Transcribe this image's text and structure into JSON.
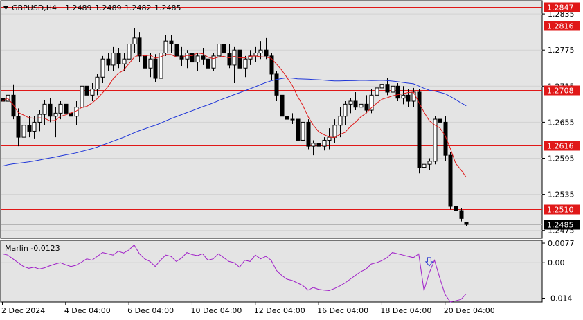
{
  "header": {
    "symbol_tf": "GBPUSD,H4",
    "open": "1.2489",
    "high": "1.2489",
    "low": "1.2482",
    "close": "1.2485"
  },
  "colors": {
    "background": "#e4e4e4",
    "frame": "#000000",
    "bull_body": "#ffffff",
    "bear_body": "#000000",
    "ma_fast": "#e01818",
    "ma_slow": "#1f36d8",
    "level": "#e01818",
    "marlin": "#a020c8",
    "arrow": "#2a3ad0",
    "label_bg": "#e01818",
    "current_bg": "#000000"
  },
  "icons": {
    "menu": "triangle-down-icon",
    "signal": "down-arrow-icon"
  },
  "chart_data": [
    {
      "type": "candlestick",
      "title": "GBPUSD,H4",
      "price_axis_labels": [
        "1.2835",
        "1.2775",
        "1.2715",
        "1.2655",
        "1.2595",
        "1.2535",
        "1.2475"
      ],
      "ylim": [
        1.2462,
        1.2857
      ],
      "time_axis_labels": [
        "2 Dec 2024",
        "4 Dec 04:00",
        "6 Dec 04:00",
        "10 Dec 04:00",
        "12 Dec 04:00",
        "16 Dec 04:00",
        "18 Dec 04:00",
        "20 Dec 04:00"
      ],
      "levels": [
        {
          "value": 1.2847,
          "label": "1.2847"
        },
        {
          "value": 1.2816,
          "label": "1.2816"
        },
        {
          "value": 1.2708,
          "label": "1.2708"
        },
        {
          "value": 1.2616,
          "label": "1.2616"
        },
        {
          "value": 1.251,
          "label": "1.2510"
        }
      ],
      "current_price": {
        "value": 1.2485,
        "label": "1.2485"
      },
      "candles": [
        [
          1.2695,
          1.271,
          1.268,
          1.269
        ],
        [
          1.269,
          1.2715,
          1.268,
          1.27
        ],
        [
          1.27,
          1.2718,
          1.266,
          1.2665
        ],
        [
          1.2665,
          1.2678,
          1.2615,
          1.263
        ],
        [
          1.263,
          1.2658,
          1.262,
          1.265
        ],
        [
          1.265,
          1.2665,
          1.263,
          1.264
        ],
        [
          1.264,
          1.2665,
          1.2628,
          1.2655
        ],
        [
          1.2655,
          1.2675,
          1.264,
          1.2668
        ],
        [
          1.2668,
          1.2692,
          1.265,
          1.2685
        ],
        [
          1.2685,
          1.2695,
          1.2655,
          1.2665
        ],
        [
          1.2665,
          1.268,
          1.263,
          1.267
        ],
        [
          1.267,
          1.269,
          1.266,
          1.2685
        ],
        [
          1.2685,
          1.27,
          1.266,
          1.267
        ],
        [
          1.267,
          1.269,
          1.263,
          1.2665
        ],
        [
          1.2665,
          1.269,
          1.265,
          1.268
        ],
        [
          1.268,
          1.272,
          1.2675,
          1.2715
        ],
        [
          1.2715,
          1.2725,
          1.269,
          1.27
        ],
        [
          1.27,
          1.272,
          1.269,
          1.271
        ],
        [
          1.271,
          1.2735,
          1.27,
          1.273
        ],
        [
          1.273,
          1.2765,
          1.272,
          1.276
        ],
        [
          1.276,
          1.277,
          1.274,
          1.275
        ],
        [
          1.275,
          1.278,
          1.274,
          1.277
        ],
        [
          1.277,
          1.2778,
          1.2745,
          1.2752
        ],
        [
          1.2752,
          1.277,
          1.274,
          1.276
        ],
        [
          1.276,
          1.279,
          1.275,
          1.2785
        ],
        [
          1.2785,
          1.2812,
          1.277,
          1.2795
        ],
        [
          1.2795,
          1.2805,
          1.2755,
          1.2765
        ],
        [
          1.2765,
          1.278,
          1.2735,
          1.2745
        ],
        [
          1.2745,
          1.277,
          1.273,
          1.276
        ],
        [
          1.276,
          1.2768,
          1.2722,
          1.2728
        ],
        [
          1.2728,
          1.2775,
          1.272,
          1.277
        ],
        [
          1.277,
          1.28,
          1.2765,
          1.279
        ],
        [
          1.279,
          1.28,
          1.277,
          1.2785
        ],
        [
          1.2785,
          1.279,
          1.2755,
          1.2765
        ],
        [
          1.2765,
          1.278,
          1.2748,
          1.276
        ],
        [
          1.276,
          1.2775,
          1.2745,
          1.277
        ],
        [
          1.277,
          1.2775,
          1.2748,
          1.2755
        ],
        [
          1.2755,
          1.277,
          1.274,
          1.2765
        ],
        [
          1.2765,
          1.2778,
          1.275,
          1.276
        ],
        [
          1.276,
          1.2772,
          1.2735,
          1.2745
        ],
        [
          1.2745,
          1.277,
          1.274,
          1.2765
        ],
        [
          1.2765,
          1.279,
          1.276,
          1.2785
        ],
        [
          1.2785,
          1.2795,
          1.276,
          1.277
        ],
        [
          1.277,
          1.2785,
          1.2745,
          1.275
        ],
        [
          1.275,
          1.278,
          1.272,
          1.2775
        ],
        [
          1.2775,
          1.2785,
          1.274,
          1.2745
        ],
        [
          1.2745,
          1.2765,
          1.273,
          1.276
        ],
        [
          1.276,
          1.2775,
          1.275,
          1.2765
        ],
        [
          1.2765,
          1.278,
          1.2755,
          1.277
        ],
        [
          1.277,
          1.279,
          1.276,
          1.2775
        ],
        [
          1.2775,
          1.2795,
          1.276,
          1.2765
        ],
        [
          1.2765,
          1.277,
          1.2725,
          1.2735
        ],
        [
          1.2735,
          1.274,
          1.269,
          1.27
        ],
        [
          1.27,
          1.271,
          1.2655,
          1.2665
        ],
        [
          1.2665,
          1.268,
          1.2655,
          1.266
        ],
        [
          1.266,
          1.267,
          1.2652,
          1.266
        ],
        [
          1.266,
          1.2662,
          1.2615,
          1.2625
        ],
        [
          1.2625,
          1.266,
          1.262,
          1.2655
        ],
        [
          1.2655,
          1.266,
          1.261,
          1.2615
        ],
        [
          1.2615,
          1.2625,
          1.26,
          1.262
        ],
        [
          1.262,
          1.2628,
          1.2598,
          1.2615
        ],
        [
          1.2615,
          1.263,
          1.2608,
          1.2625
        ],
        [
          1.2625,
          1.2645,
          1.261,
          1.263
        ],
        [
          1.263,
          1.266,
          1.262,
          1.265
        ],
        [
          1.265,
          1.268,
          1.263,
          1.2665
        ],
        [
          1.2665,
          1.269,
          1.265,
          1.2685
        ],
        [
          1.2685,
          1.2695,
          1.267,
          1.269
        ],
        [
          1.269,
          1.2705,
          1.2675,
          1.268
        ],
        [
          1.268,
          1.269,
          1.2665,
          1.2685
        ],
        [
          1.2685,
          1.27,
          1.267,
          1.2675
        ],
        [
          1.2675,
          1.271,
          1.267,
          1.27
        ],
        [
          1.27,
          1.272,
          1.269,
          1.2712
        ],
        [
          1.2712,
          1.2725,
          1.27,
          1.2718
        ],
        [
          1.2718,
          1.2728,
          1.27,
          1.2705
        ],
        [
          1.2705,
          1.2722,
          1.2695,
          1.2715
        ],
        [
          1.2715,
          1.272,
          1.269,
          1.2695
        ],
        [
          1.2695,
          1.2715,
          1.2685,
          1.27
        ],
        [
          1.27,
          1.271,
          1.268,
          1.269
        ],
        [
          1.269,
          1.2712,
          1.268,
          1.2705
        ],
        [
          1.2705,
          1.271,
          1.257,
          1.258
        ],
        [
          1.258,
          1.2592,
          1.2565,
          1.2585
        ],
        [
          1.2585,
          1.2595,
          1.2575,
          1.259
        ],
        [
          1.259,
          1.2665,
          1.2585,
          1.266
        ],
        [
          1.266,
          1.267,
          1.263,
          1.2655
        ],
        [
          1.2655,
          1.2665,
          1.259,
          1.26
        ],
        [
          1.26,
          1.2605,
          1.251,
          1.2515
        ],
        [
          1.2515,
          1.252,
          1.25,
          1.2508
        ],
        [
          1.2508,
          1.2512,
          1.249,
          1.2495
        ],
        [
          1.2489,
          1.2489,
          1.2482,
          1.2485
        ]
      ]
    },
    {
      "type": "line",
      "title": "Marlin -0.0123",
      "tick_labels": [
        "0.0077",
        "0.00",
        "-0.014"
      ],
      "ylim": [
        -0.0155,
        0.0088
      ],
      "signal_marker_index": 81,
      "values": [
        0.0035,
        0.003,
        0.0015,
        0.0,
        -0.0015,
        -0.0022,
        -0.0018,
        -0.0025,
        -0.002,
        -0.0012,
        -0.0005,
        0.0,
        -0.0008,
        -0.0015,
        -0.001,
        0.0002,
        0.0015,
        0.001,
        0.0025,
        0.004,
        0.0035,
        0.003,
        0.0045,
        0.0038,
        0.005,
        0.007,
        0.0035,
        0.0015,
        0.0005,
        -0.0015,
        0.001,
        0.003,
        0.0025,
        0.0005,
        0.0018,
        0.004,
        0.0032,
        0.0028,
        0.0035,
        0.001,
        0.0015,
        0.0035,
        0.002,
        0.0005,
        0.0,
        -0.0018,
        0.001,
        0.0005,
        0.003,
        0.0015,
        0.0025,
        0.001,
        -0.003,
        -0.005,
        -0.0065,
        -0.007,
        -0.008,
        -0.009,
        -0.0108,
        -0.0098,
        -0.0105,
        -0.0108,
        -0.011,
        -0.0102,
        -0.0092,
        -0.008,
        -0.0065,
        -0.005,
        -0.0035,
        -0.0025,
        -0.0005,
        0.0,
        0.0008,
        0.002,
        0.004,
        0.0035,
        0.003,
        0.0025,
        0.002,
        0.0035,
        -0.011,
        -0.004,
        0.001,
        -0.006,
        -0.0125,
        -0.0155,
        -0.015,
        -0.0145,
        -0.0123
      ]
    }
  ]
}
